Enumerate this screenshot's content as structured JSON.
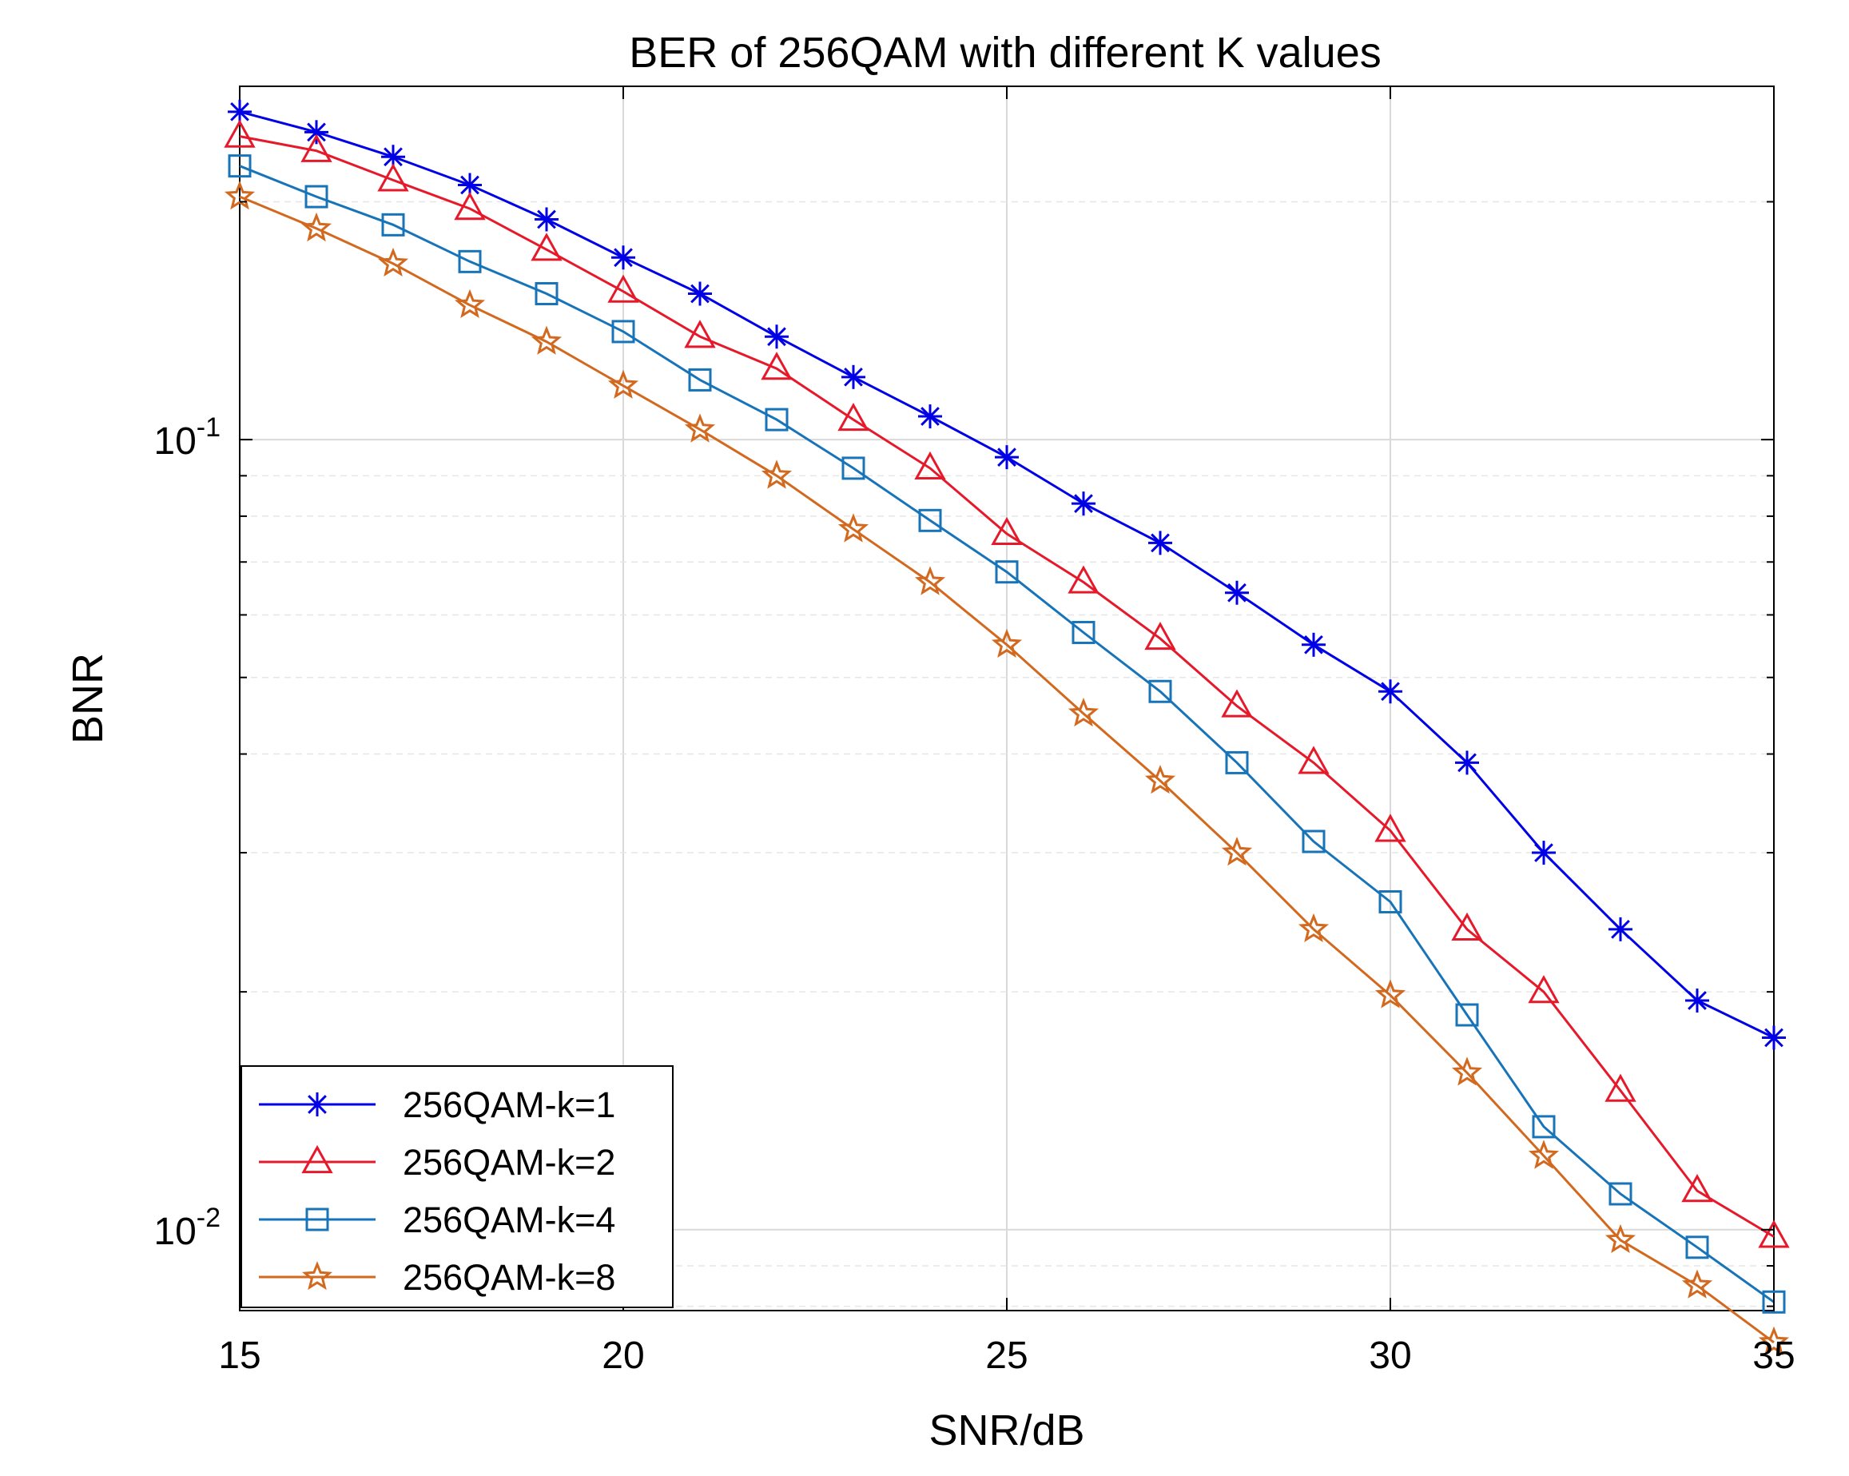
{
  "chart_data": {
    "type": "line",
    "title": "BER of 256QAM with different K values",
    "xlabel": "SNR/dB",
    "ylabel": "BNR",
    "xscale": "linear",
    "yscale": "log",
    "xlim": [
      15,
      35
    ],
    "ylim": [
      0.0079,
      0.28
    ],
    "grid": true,
    "legend_position": "bottom-left",
    "xticks": [
      {
        "value": 15,
        "label": "15"
      },
      {
        "value": 20,
        "label": "20"
      },
      {
        "value": 25,
        "label": "25"
      },
      {
        "value": 30,
        "label": "30"
      },
      {
        "value": 35,
        "label": "35"
      }
    ],
    "yticks": [
      {
        "value": 0.1,
        "base": "10",
        "exp": "-1"
      },
      {
        "value": 0.01,
        "base": "10",
        "exp": "-2"
      }
    ],
    "x": [
      15,
      16,
      17,
      18,
      19,
      20,
      21,
      22,
      23,
      24,
      25,
      26,
      27,
      28,
      29,
      30,
      31,
      32,
      33,
      34,
      35
    ],
    "series": [
      {
        "name": "256QAM-k=1",
        "color": "#0000e6",
        "marker": "asterisk",
        "values": [
          0.26,
          0.245,
          0.228,
          0.21,
          0.19,
          0.17,
          0.153,
          0.135,
          0.12,
          0.107,
          0.095,
          0.083,
          0.074,
          0.064,
          0.055,
          0.048,
          0.039,
          0.03,
          0.024,
          0.0195,
          0.0175
        ]
      },
      {
        "name": "256QAM-k=2",
        "color": "#e6192b",
        "marker": "triangle",
        "values": [
          0.242,
          0.232,
          0.213,
          0.196,
          0.174,
          0.154,
          0.135,
          0.123,
          0.106,
          0.092,
          0.076,
          0.066,
          0.056,
          0.046,
          0.039,
          0.032,
          0.024,
          0.02,
          0.015,
          0.0112,
          0.0098
        ]
      },
      {
        "name": "256QAM-k=4",
        "color": "#1874b8",
        "marker": "square",
        "values": [
          0.222,
          0.203,
          0.187,
          0.168,
          0.153,
          0.137,
          0.119,
          0.106,
          0.092,
          0.079,
          0.068,
          0.057,
          0.048,
          0.039,
          0.031,
          0.026,
          0.0187,
          0.0135,
          0.0111,
          0.0095,
          0.0081
        ]
      },
      {
        "name": "256QAM-k=8",
        "color": "#d2691e",
        "marker": "star",
        "values": [
          0.203,
          0.185,
          0.167,
          0.148,
          0.133,
          0.117,
          0.103,
          0.09,
          0.077,
          0.066,
          0.055,
          0.045,
          0.037,
          0.03,
          0.024,
          0.0198,
          0.0158,
          0.0124,
          0.0097,
          0.0085,
          0.0072
        ]
      }
    ]
  }
}
